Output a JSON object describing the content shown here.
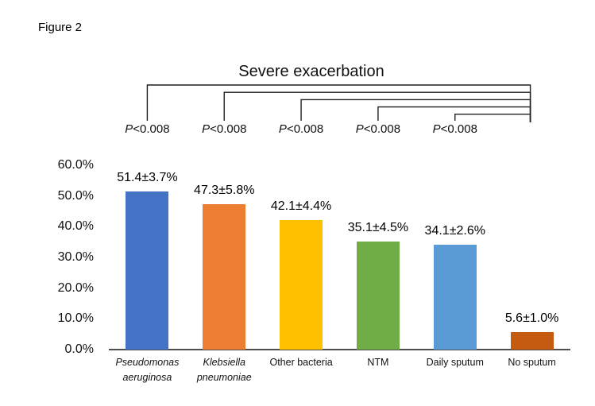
{
  "figure_label": "Figure 2",
  "chart_data": {
    "type": "bar",
    "title": "Severe exacerbation",
    "xlabel": "",
    "ylabel": "",
    "ylim": [
      0,
      60
    ],
    "grid": false,
    "legend": "none",
    "y_ticks": [
      {
        "label": "60.0%",
        "value": 60
      },
      {
        "label": "50.0%",
        "value": 50
      },
      {
        "label": "40.0%",
        "value": 40
      },
      {
        "label": "30.0%",
        "value": 30
      },
      {
        "label": "20.0%",
        "value": 20
      },
      {
        "label": "10.0%",
        "value": 10
      },
      {
        "label": "0.0%",
        "value": 0
      }
    ],
    "categories": [
      {
        "label": "Pseudomonas aeruginosa",
        "lines": [
          "Pseudomonas",
          "aeruginosa"
        ],
        "italic": true
      },
      {
        "label": "Klebsiella pneumoniae",
        "lines": [
          "Klebsiella",
          "pneumoniae"
        ],
        "italic": true
      },
      {
        "label": "Other bacteria",
        "lines": [
          "Other bacteria"
        ],
        "italic": false
      },
      {
        "label": "NTM",
        "lines": [
          "NTM"
        ],
        "italic": false
      },
      {
        "label": "Daily sputum",
        "lines": [
          "Daily sputum"
        ],
        "italic": false
      },
      {
        "label": "No sputum",
        "lines": [
          "No sputum"
        ],
        "italic": false
      }
    ],
    "values": [
      51.4,
      47.3,
      42.1,
      35.1,
      34.1,
      5.6
    ],
    "errors": [
      3.7,
      5.8,
      4.4,
      4.5,
      2.6,
      1.0
    ],
    "value_labels": [
      "51.4±3.7%",
      "47.3±5.8%",
      "42.1±4.4%",
      "35.1±4.5%",
      "34.1±2.6%",
      "5.6±1.0%"
    ],
    "bar_colors": [
      "#4472C4",
      "#ED7D31",
      "#FFC000",
      "#70AD47",
      "#5B9BD5",
      "#C55A11"
    ],
    "axis_color": "#4d4d4d",
    "bracket_color": "#1f1f1f",
    "significance_brackets": [
      {
        "from_index": 0,
        "to_index": 5,
        "p_italic": "P",
        "p_text": "<0.008"
      },
      {
        "from_index": 1,
        "to_index": 5,
        "p_italic": "P",
        "p_text": "<0.008"
      },
      {
        "from_index": 2,
        "to_index": 5,
        "p_italic": "P",
        "p_text": "<0.008"
      },
      {
        "from_index": 3,
        "to_index": 5,
        "p_italic": "P",
        "p_text": "<0.008"
      },
      {
        "from_index": 4,
        "to_index": 5,
        "p_italic": "P",
        "p_text": "<0.008"
      }
    ]
  }
}
